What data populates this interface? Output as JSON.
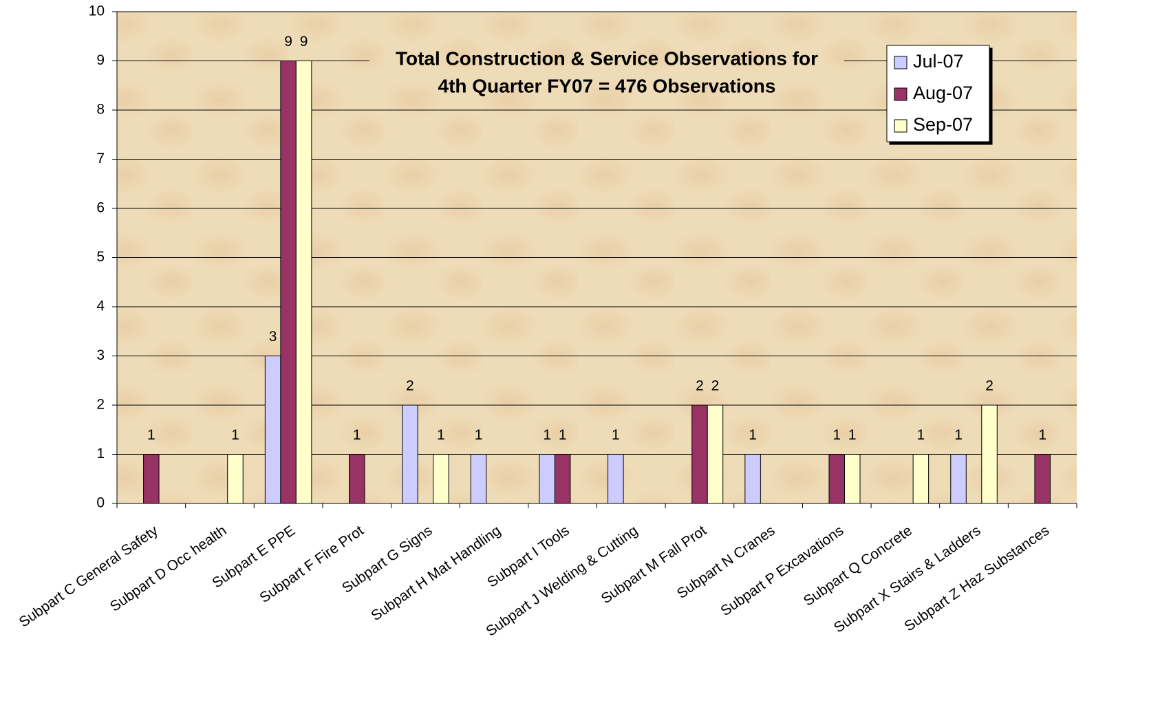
{
  "chart_data": {
    "type": "bar",
    "title": [
      "Total Construction & Service Observations for",
      "4th Quarter FY07 = 476 Observations"
    ],
    "categories": [
      "Subpart C General Safety",
      "Subpart D Occ health",
      "Subpart E PPE",
      "Subpart F Fire Prot",
      "Subpart G Signs",
      "Subpart H Mat Handling",
      "Subpart I Tools",
      "Subpart J Welding & Cutting",
      "Subpart M Fall Prot",
      "Subpart N Cranes",
      "Subpart P Excavations",
      "Subpart Q Concrete",
      "Subpart X Stairs & Ladders",
      "Subpart Z Haz Substances"
    ],
    "series": [
      {
        "name": "Jul-07",
        "color": "#ccccff",
        "values": [
          null,
          null,
          3,
          null,
          2,
          1,
          1,
          1,
          null,
          1,
          null,
          null,
          1,
          null
        ]
      },
      {
        "name": "Aug-07",
        "color": "#993366",
        "values": [
          1,
          null,
          9,
          1,
          null,
          null,
          1,
          null,
          2,
          null,
          1,
          null,
          null,
          1
        ]
      },
      {
        "name": "Sep-07",
        "color": "#ffffcc",
        "values": [
          null,
          1,
          9,
          null,
          1,
          null,
          null,
          null,
          2,
          null,
          1,
          1,
          2,
          null
        ]
      }
    ],
    "ylim": [
      0,
      10
    ],
    "yticks": [
      0,
      1,
      2,
      3,
      4,
      5,
      6,
      7,
      8,
      9,
      10
    ],
    "grid": true,
    "legend": "top-right"
  }
}
